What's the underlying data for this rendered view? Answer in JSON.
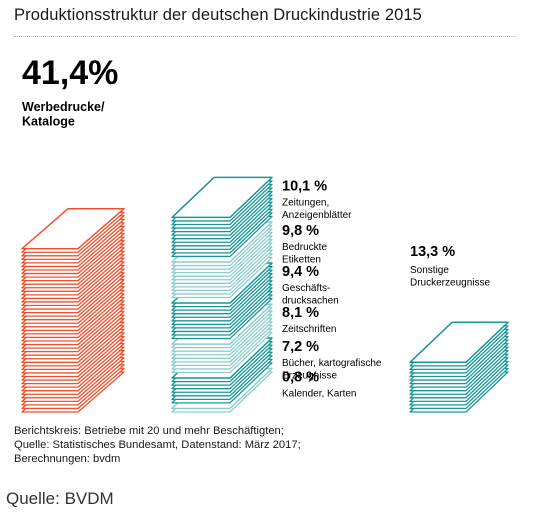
{
  "chart_data": {
    "type": "stacked-paper-infographic",
    "title": "Produktionsstruktur der deutschen Druckindustrie 2015",
    "unit": "%",
    "segments": [
      {
        "value": 41.4,
        "label": "41,4%",
        "lines": [
          "Werbedrucke/",
          "Kataloge"
        ],
        "color": "#f0502e",
        "column": "left"
      },
      {
        "value": 10.1,
        "label": "10,1 %",
        "lines": [
          "Zeitungen,",
          "Anzeigenblätter"
        ],
        "color": "#1a9697",
        "column": "middle"
      },
      {
        "value": 9.8,
        "label": "9,8 %",
        "lines": [
          "Bedruckte",
          "Etiketten"
        ],
        "color": "#8fcdcd",
        "column": "middle"
      },
      {
        "value": 9.4,
        "label": "9,4 %",
        "lines": [
          "Geschäfts-",
          "drucksachen"
        ],
        "color": "#1a9697",
        "column": "middle"
      },
      {
        "value": 8.1,
        "label": "8,1 %",
        "lines": [
          "Zeitschriften"
        ],
        "color": "#8fcdcd",
        "column": "middle"
      },
      {
        "value": 7.2,
        "label": "7,2 %",
        "lines": [
          "Bücher, kartografische",
          "Erzeugnisse"
        ],
        "color": "#1a9697",
        "column": "middle"
      },
      {
        "value": 0.8,
        "label": "0,8 %",
        "lines": [
          "Kalender, Karten"
        ],
        "color": "#8fcdcd",
        "column": "middle"
      },
      {
        "value": 13.3,
        "label": "13,3 %",
        "lines": [
          "Sonstige",
          "Druckerzeugnisse"
        ],
        "color": "#1a9697",
        "column": "right"
      }
    ]
  },
  "footnote": {
    "line1": "Berichtskreis: Betriebe mit 20 und mehr Beschäftigten;",
    "line2": "Quelle: Statistisches Bundesamt, Datenstand: März 2017;",
    "line3": "Berechnungen: bvdm"
  },
  "source": "Quelle: BVDM"
}
